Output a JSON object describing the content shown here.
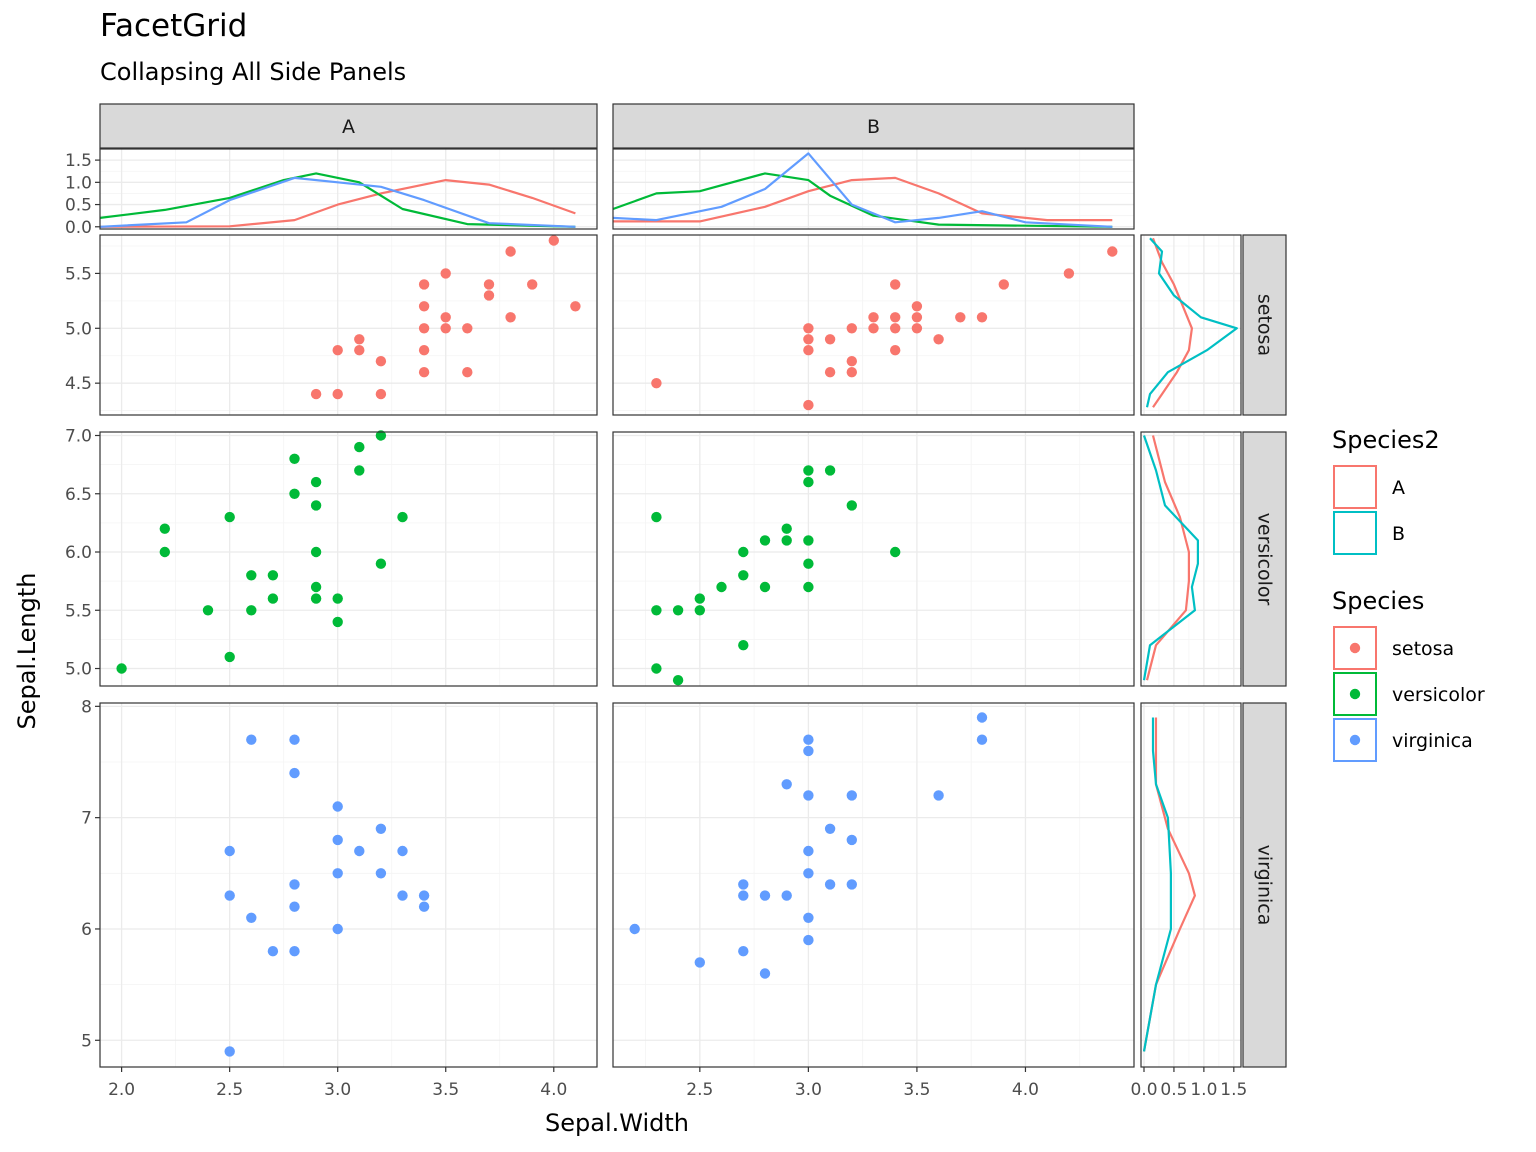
{
  "title": "FacetGrid",
  "subtitle": "Collapsing All Side Panels",
  "colors": {
    "setosa": "#F8766D",
    "versicolor": "#00BA38",
    "virginica": "#619CFF",
    "A": "#F8766D",
    "B": "#00BFC4"
  },
  "chart_data": {
    "type": "scatter",
    "xlabel": "Sepal.Width",
    "ylabel": "Sepal.Length",
    "columns": [
      "A",
      "B"
    ],
    "rows": [
      "setosa",
      "versicolor",
      "virginica"
    ],
    "x_ticks": {
      "A": {
        "values": [
          2.0,
          2.5,
          3.0,
          3.5,
          4.0
        ],
        "labels": [
          "2.0",
          "2.5",
          "3.0",
          "3.5",
          "4.0"
        ]
      },
      "B": {
        "values": [
          2.5,
          3.0,
          3.5,
          4.0
        ],
        "labels": [
          "2.5",
          "3.0",
          "3.5",
          "4.0"
        ]
      }
    },
    "xlim": {
      "A": [
        1.9,
        4.2
      ],
      "B": [
        2.1,
        4.5
      ]
    },
    "y_ticks": {
      "setosa": {
        "values": [
          4.5,
          5.0,
          5.5
        ],
        "labels": [
          "4.5",
          "5.0",
          "5.5"
        ]
      },
      "versicolor": {
        "values": [
          5.0,
          5.5,
          6.0,
          6.5,
          7.0
        ],
        "labels": [
          "5.0",
          "5.5",
          "6.0",
          "6.5",
          "7.0"
        ]
      },
      "virginica": {
        "values": [
          5,
          6,
          7,
          8
        ],
        "labels": [
          "5",
          "6",
          "7",
          "8"
        ]
      }
    },
    "ylim": {
      "setosa": [
        4.21,
        5.85
      ],
      "versicolor": [
        4.85,
        7.03
      ],
      "virginica": [
        4.76,
        8.03
      ]
    },
    "points": {
      "setosa": {
        "A": [
          [
            2.9,
            4.4
          ],
          [
            3.0,
            4.4
          ],
          [
            3.2,
            4.4
          ],
          [
            3.0,
            4.8
          ],
          [
            3.1,
            4.8
          ],
          [
            3.1,
            4.9
          ],
          [
            3.2,
            4.7
          ],
          [
            3.4,
            4.6
          ],
          [
            3.4,
            4.8
          ],
          [
            3.4,
            5.0
          ],
          [
            3.4,
            5.2
          ],
          [
            3.4,
            5.4
          ],
          [
            3.5,
            5.0
          ],
          [
            3.5,
            5.1
          ],
          [
            3.5,
            5.5
          ],
          [
            3.6,
            4.6
          ],
          [
            3.6,
            5.0
          ],
          [
            3.7,
            5.3
          ],
          [
            3.7,
            5.4
          ],
          [
            3.8,
            5.1
          ],
          [
            3.8,
            5.7
          ],
          [
            3.9,
            5.4
          ],
          [
            4.0,
            5.8
          ],
          [
            4.1,
            5.2
          ]
        ],
        "B": [
          [
            2.3,
            4.5
          ],
          [
            3.0,
            4.3
          ],
          [
            3.0,
            4.8
          ],
          [
            3.0,
            4.9
          ],
          [
            3.0,
            5.0
          ],
          [
            3.1,
            4.6
          ],
          [
            3.1,
            4.9
          ],
          [
            3.2,
            4.6
          ],
          [
            3.2,
            4.7
          ],
          [
            3.2,
            5.0
          ],
          [
            3.3,
            5.0
          ],
          [
            3.3,
            5.1
          ],
          [
            3.4,
            4.8
          ],
          [
            3.4,
            5.0
          ],
          [
            3.4,
            5.1
          ],
          [
            3.4,
            5.4
          ],
          [
            3.5,
            5.0
          ],
          [
            3.5,
            5.1
          ],
          [
            3.5,
            5.2
          ],
          [
            3.6,
            4.9
          ],
          [
            3.7,
            5.1
          ],
          [
            3.8,
            5.1
          ],
          [
            3.9,
            5.4
          ],
          [
            4.2,
            5.5
          ],
          [
            4.4,
            5.7
          ]
        ]
      },
      "versicolor": {
        "A": [
          [
            2.0,
            5.0
          ],
          [
            2.2,
            6.0
          ],
          [
            2.2,
            6.2
          ],
          [
            2.4,
            5.5
          ],
          [
            2.5,
            5.1
          ],
          [
            2.5,
            6.3
          ],
          [
            2.6,
            5.5
          ],
          [
            2.6,
            5.8
          ],
          [
            2.7,
            5.6
          ],
          [
            2.7,
            5.8
          ],
          [
            2.8,
            6.5
          ],
          [
            2.8,
            6.8
          ],
          [
            2.9,
            5.6
          ],
          [
            2.9,
            5.7
          ],
          [
            2.9,
            6.0
          ],
          [
            2.9,
            6.4
          ],
          [
            2.9,
            6.6
          ],
          [
            3.0,
            5.4
          ],
          [
            3.0,
            5.6
          ],
          [
            3.1,
            6.7
          ],
          [
            3.1,
            6.9
          ],
          [
            3.2,
            5.9
          ],
          [
            3.2,
            7.0
          ],
          [
            3.3,
            6.3
          ]
        ],
        "B": [
          [
            2.3,
            5.0
          ],
          [
            2.3,
            5.5
          ],
          [
            2.3,
            6.3
          ],
          [
            2.4,
            4.9
          ],
          [
            2.4,
            5.5
          ],
          [
            2.5,
            5.5
          ],
          [
            2.5,
            5.6
          ],
          [
            2.6,
            5.7
          ],
          [
            2.7,
            5.2
          ],
          [
            2.7,
            5.8
          ],
          [
            2.7,
            6.0
          ],
          [
            2.8,
            5.7
          ],
          [
            2.8,
            6.1
          ],
          [
            2.9,
            6.1
          ],
          [
            2.9,
            6.2
          ],
          [
            3.0,
            5.7
          ],
          [
            3.0,
            5.9
          ],
          [
            3.0,
            6.1
          ],
          [
            3.0,
            6.6
          ],
          [
            3.0,
            6.7
          ],
          [
            3.1,
            6.7
          ],
          [
            3.2,
            6.4
          ],
          [
            3.4,
            6.0
          ]
        ]
      },
      "virginica": {
        "A": [
          [
            2.5,
            4.9
          ],
          [
            2.5,
            6.3
          ],
          [
            2.5,
            6.7
          ],
          [
            2.6,
            6.1
          ],
          [
            2.6,
            7.7
          ],
          [
            2.7,
            5.8
          ],
          [
            2.8,
            5.8
          ],
          [
            2.8,
            6.2
          ],
          [
            2.8,
            6.4
          ],
          [
            2.8,
            7.4
          ],
          [
            2.8,
            7.7
          ],
          [
            3.0,
            6.0
          ],
          [
            3.0,
            6.5
          ],
          [
            3.0,
            6.8
          ],
          [
            3.0,
            7.1
          ],
          [
            3.1,
            6.7
          ],
          [
            3.2,
            6.5
          ],
          [
            3.2,
            6.9
          ],
          [
            3.3,
            6.3
          ],
          [
            3.3,
            6.7
          ],
          [
            3.4,
            6.2
          ],
          [
            3.4,
            6.3
          ]
        ],
        "B": [
          [
            2.2,
            6.0
          ],
          [
            2.5,
            5.7
          ],
          [
            2.7,
            5.8
          ],
          [
            2.7,
            6.3
          ],
          [
            2.7,
            6.4
          ],
          [
            2.8,
            5.6
          ],
          [
            2.8,
            6.3
          ],
          [
            2.9,
            6.3
          ],
          [
            2.9,
            7.3
          ],
          [
            3.0,
            5.9
          ],
          [
            3.0,
            6.1
          ],
          [
            3.0,
            6.5
          ],
          [
            3.0,
            6.7
          ],
          [
            3.0,
            7.2
          ],
          [
            3.0,
            7.6
          ],
          [
            3.0,
            7.7
          ],
          [
            3.1,
            6.4
          ],
          [
            3.1,
            6.9
          ],
          [
            3.2,
            6.4
          ],
          [
            3.2,
            6.8
          ],
          [
            3.2,
            7.2
          ],
          [
            3.6,
            7.2
          ],
          [
            3.8,
            7.7
          ],
          [
            3.8,
            7.9
          ]
        ]
      }
    },
    "top_density": {
      "yticks": [
        0.0,
        0.5,
        1.0,
        1.5
      ],
      "ytick_labels": [
        "0.0",
        "0.5",
        "1.0",
        "1.5"
      ],
      "ylim": [
        -0.05,
        1.75
      ],
      "curves": {
        "A": {
          "setosa": [
            [
              1.9,
              0.0
            ],
            [
              2.5,
              0.01
            ],
            [
              2.8,
              0.15
            ],
            [
              3.0,
              0.5
            ],
            [
              3.2,
              0.75
            ],
            [
              3.5,
              1.05
            ],
            [
              3.7,
              0.95
            ],
            [
              3.9,
              0.65
            ],
            [
              4.1,
              0.3
            ]
          ],
          "versicolor": [
            [
              1.9,
              0.2
            ],
            [
              2.2,
              0.38
            ],
            [
              2.5,
              0.65
            ],
            [
              2.75,
              1.05
            ],
            [
              2.9,
              1.2
            ],
            [
              3.1,
              1.0
            ],
            [
              3.3,
              0.4
            ],
            [
              3.6,
              0.06
            ],
            [
              4.1,
              0.0
            ]
          ],
          "virginica": [
            [
              1.9,
              0.0
            ],
            [
              2.3,
              0.1
            ],
            [
              2.5,
              0.6
            ],
            [
              2.8,
              1.1
            ],
            [
              3.0,
              1.0
            ],
            [
              3.2,
              0.9
            ],
            [
              3.4,
              0.6
            ],
            [
              3.7,
              0.08
            ],
            [
              4.1,
              0.0
            ]
          ]
        },
        "B": {
          "setosa": [
            [
              2.1,
              0.12
            ],
            [
              2.5,
              0.12
            ],
            [
              2.8,
              0.45
            ],
            [
              3.0,
              0.8
            ],
            [
              3.2,
              1.05
            ],
            [
              3.4,
              1.1
            ],
            [
              3.6,
              0.75
            ],
            [
              3.8,
              0.3
            ],
            [
              4.1,
              0.15
            ],
            [
              4.4,
              0.15
            ]
          ],
          "versicolor": [
            [
              2.1,
              0.4
            ],
            [
              2.3,
              0.75
            ],
            [
              2.5,
              0.8
            ],
            [
              2.8,
              1.2
            ],
            [
              3.0,
              1.05
            ],
            [
              3.1,
              0.7
            ],
            [
              3.3,
              0.25
            ],
            [
              3.6,
              0.05
            ],
            [
              4.4,
              0.0
            ]
          ],
          "virginica": [
            [
              2.1,
              0.2
            ],
            [
              2.3,
              0.15
            ],
            [
              2.6,
              0.45
            ],
            [
              2.8,
              0.85
            ],
            [
              3.0,
              1.65
            ],
            [
              3.2,
              0.5
            ],
            [
              3.4,
              0.1
            ],
            [
              3.6,
              0.2
            ],
            [
              3.8,
              0.35
            ],
            [
              4.0,
              0.1
            ],
            [
              4.4,
              0.0
            ]
          ]
        }
      }
    },
    "right_density": {
      "xticks": [
        0.0,
        0.5,
        1.0,
        1.5
      ],
      "xtick_labels": [
        "0.0",
        "0.5",
        "1.0",
        "1.5"
      ],
      "xlim": [
        -0.05,
        1.62
      ],
      "curves": {
        "setosa": {
          "A": [
            [
              4.28,
              0.15
            ],
            [
              4.4,
              0.3
            ],
            [
              4.6,
              0.55
            ],
            [
              4.8,
              0.75
            ],
            [
              5.0,
              0.8
            ],
            [
              5.2,
              0.65
            ],
            [
              5.4,
              0.5
            ],
            [
              5.6,
              0.3
            ],
            [
              5.82,
              0.15
            ]
          ],
          "B": [
            [
              4.28,
              0.05
            ],
            [
              4.4,
              0.1
            ],
            [
              4.6,
              0.4
            ],
            [
              4.8,
              1.05
            ],
            [
              5.0,
              1.55
            ],
            [
              5.1,
              0.95
            ],
            [
              5.3,
              0.5
            ],
            [
              5.5,
              0.25
            ],
            [
              5.7,
              0.3
            ],
            [
              5.82,
              0.1
            ]
          ]
        },
        "versicolor": {
          "A": [
            [
              4.9,
              0.05
            ],
            [
              5.2,
              0.2
            ],
            [
              5.5,
              0.7
            ],
            [
              5.75,
              0.75
            ],
            [
              6.0,
              0.75
            ],
            [
              6.3,
              0.6
            ],
            [
              6.6,
              0.35
            ],
            [
              6.8,
              0.25
            ],
            [
              7.0,
              0.15
            ]
          ],
          "B": [
            [
              4.9,
              0.0
            ],
            [
              5.2,
              0.1
            ],
            [
              5.5,
              0.85
            ],
            [
              5.7,
              0.8
            ],
            [
              5.9,
              0.9
            ],
            [
              6.1,
              0.9
            ],
            [
              6.4,
              0.35
            ],
            [
              6.7,
              0.2
            ],
            [
              7.0,
              0.0
            ]
          ]
        },
        "virginica": {
          "A": [
            [
              4.9,
              0.0
            ],
            [
              5.5,
              0.2
            ],
            [
              6.0,
              0.6
            ],
            [
              6.3,
              0.85
            ],
            [
              6.5,
              0.75
            ],
            [
              6.9,
              0.4
            ],
            [
              7.3,
              0.2
            ],
            [
              7.9,
              0.2
            ]
          ],
          "B": [
            [
              4.9,
              0.0
            ],
            [
              5.5,
              0.2
            ],
            [
              6.0,
              0.45
            ],
            [
              6.5,
              0.45
            ],
            [
              7.0,
              0.4
            ],
            [
              7.3,
              0.2
            ],
            [
              7.6,
              0.15
            ],
            [
              7.9,
              0.15
            ]
          ]
        }
      }
    },
    "legends": [
      {
        "title": "Species2",
        "style": "line",
        "items": [
          {
            "label": "A",
            "key": "A"
          },
          {
            "label": "B",
            "key": "B"
          }
        ]
      },
      {
        "title": "Species",
        "style": "point",
        "items": [
          {
            "label": "setosa",
            "key": "setosa"
          },
          {
            "label": "versicolor",
            "key": "versicolor"
          },
          {
            "label": "virginica",
            "key": "virginica"
          }
        ]
      }
    ]
  }
}
